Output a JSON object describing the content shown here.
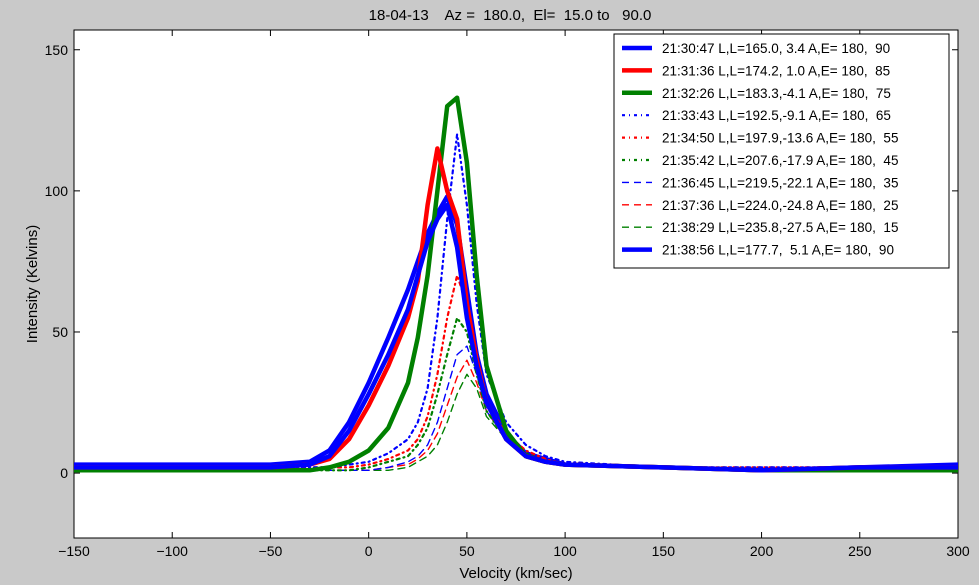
{
  "chart_data": {
    "type": "line",
    "title": "18-04-13    Az =  180.0,  El=  15.0 to   90.0",
    "xlabel": "Velocity (km/sec)",
    "ylabel": "Intensity (Kelvins)",
    "xlim": [
      -150,
      300
    ],
    "ylim": [
      -23,
      157
    ],
    "xticks": [
      "-150",
      "-100",
      "-50",
      "0",
      "50",
      "100",
      "150",
      "200",
      "250",
      "300"
    ],
    "yticks": [
      "0",
      "50",
      "100",
      "150"
    ],
    "grid": false,
    "legend_position": "top-right",
    "series": [
      {
        "name": "21:30:47 L,L=165.0, 3.4 A,E= 180,  90",
        "color": "#0000ff",
        "style": "solid-thick",
        "x": [
          -150,
          -100,
          -50,
          -30,
          -20,
          -10,
          0,
          10,
          20,
          25,
          30,
          35,
          40,
          45,
          50,
          55,
          60,
          70,
          80,
          90,
          100,
          150,
          200,
          250,
          300
        ],
        "y": [
          2,
          2,
          2,
          3,
          6,
          15,
          28,
          42,
          58,
          70,
          82,
          90,
          95,
          80,
          55,
          38,
          25,
          12,
          6,
          4,
          3,
          2,
          1,
          2,
          2
        ]
      },
      {
        "name": "21:31:36 L,L=174.2, 1.0 A,E= 180,  85",
        "color": "#ff0000",
        "style": "solid-thick",
        "x": [
          -150,
          -100,
          -50,
          -30,
          -20,
          -10,
          0,
          10,
          20,
          25,
          30,
          35,
          40,
          45,
          50,
          55,
          60,
          70,
          80,
          90,
          100,
          150,
          200,
          250,
          300
        ],
        "y": [
          2,
          2,
          2,
          3,
          5,
          12,
          24,
          38,
          55,
          68,
          95,
          115,
          100,
          90,
          60,
          40,
          25,
          12,
          6,
          4,
          3,
          2,
          1,
          2,
          2
        ]
      },
      {
        "name": "21:32:26 L,L=183.3,-4.1 A,E= 180,  75",
        "color": "#008000",
        "style": "solid-thick",
        "x": [
          -150,
          -100,
          -50,
          -30,
          -20,
          -10,
          0,
          10,
          20,
          25,
          30,
          35,
          40,
          45,
          50,
          55,
          60,
          70,
          80,
          90,
          100,
          150,
          200,
          250,
          300
        ],
        "y": [
          1,
          1,
          1,
          1,
          2,
          4,
          8,
          16,
          32,
          48,
          70,
          100,
          130,
          133,
          110,
          70,
          38,
          15,
          6,
          4,
          3,
          2,
          1,
          1,
          1
        ]
      },
      {
        "name": "21:33:43 L,L=192.5,-9.1 A,E= 180,  65",
        "color": "#0000ff",
        "style": "dashdot",
        "x": [
          -150,
          -100,
          -50,
          -30,
          -20,
          -10,
          0,
          10,
          20,
          25,
          30,
          35,
          40,
          45,
          50,
          55,
          60,
          70,
          80,
          90,
          100,
          150,
          200,
          250,
          300
        ],
        "y": [
          2,
          2,
          2,
          2,
          2,
          3,
          4,
          7,
          12,
          18,
          30,
          55,
          90,
          120,
          95,
          60,
          35,
          18,
          10,
          6,
          4,
          2,
          2,
          2,
          2
        ]
      },
      {
        "name": "21:34:50 L,L=197.9,-13.6 A,E= 180,  55",
        "color": "#ff0000",
        "style": "dashdot",
        "x": [
          -150,
          -100,
          -50,
          -30,
          -20,
          -10,
          0,
          10,
          20,
          25,
          30,
          35,
          40,
          45,
          50,
          55,
          60,
          70,
          80,
          90,
          100,
          150,
          200,
          250,
          300
        ],
        "y": [
          2,
          2,
          2,
          2,
          2,
          2,
          3,
          5,
          8,
          12,
          20,
          35,
          55,
          70,
          60,
          40,
          25,
          14,
          8,
          5,
          3,
          2,
          2,
          2,
          2
        ]
      },
      {
        "name": "21:35:42 L,L=207.6,-17.9 A,E= 180,  45",
        "color": "#008000",
        "style": "dashdot",
        "x": [
          -150,
          -100,
          -50,
          -30,
          -20,
          -10,
          0,
          10,
          20,
          25,
          30,
          35,
          40,
          45,
          50,
          55,
          60,
          70,
          80,
          90,
          100,
          150,
          200,
          250,
          300
        ],
        "y": [
          1,
          1,
          1,
          1,
          1,
          1,
          2,
          4,
          6,
          10,
          16,
          28,
          42,
          55,
          50,
          35,
          22,
          12,
          7,
          4,
          3,
          2,
          1,
          1,
          1
        ]
      },
      {
        "name": "21:36:45 L,L=219.5,-22.1 A,E= 180,  35",
        "color": "#0000ff",
        "style": "dashed",
        "x": [
          -150,
          -100,
          -50,
          -30,
          -20,
          -10,
          0,
          10,
          20,
          25,
          30,
          35,
          40,
          45,
          50,
          55,
          60,
          70,
          80,
          90,
          100,
          150,
          200,
          250,
          300
        ],
        "y": [
          1,
          1,
          1,
          1,
          1,
          1,
          1,
          2,
          4,
          6,
          10,
          18,
          30,
          42,
          45,
          35,
          22,
          12,
          7,
          4,
          3,
          2,
          1,
          1,
          1
        ]
      },
      {
        "name": "21:37:36 L,L=224.0,-24.8 A,E= 180,  25",
        "color": "#ff0000",
        "style": "dashed",
        "x": [
          -150,
          -100,
          -50,
          -30,
          -20,
          -10,
          0,
          10,
          20,
          25,
          30,
          35,
          40,
          45,
          50,
          55,
          60,
          70,
          80,
          90,
          100,
          150,
          200,
          250,
          300
        ],
        "y": [
          1,
          1,
          1,
          1,
          1,
          1,
          1,
          2,
          3,
          5,
          8,
          14,
          24,
          34,
          40,
          32,
          22,
          12,
          7,
          4,
          3,
          2,
          1,
          1,
          1
        ]
      },
      {
        "name": "21:38:29 L,L=235.8,-27.5 A,E= 180,  15",
        "color": "#008000",
        "style": "dashed",
        "x": [
          -150,
          -100,
          -50,
          -30,
          -20,
          -10,
          0,
          10,
          20,
          25,
          30,
          35,
          40,
          45,
          50,
          55,
          60,
          70,
          80,
          90,
          100,
          150,
          200,
          250,
          300
        ],
        "y": [
          1,
          1,
          1,
          1,
          1,
          1,
          1,
          1,
          2,
          4,
          6,
          10,
          18,
          28,
          35,
          30,
          20,
          12,
          7,
          4,
          3,
          2,
          1,
          1,
          1
        ]
      },
      {
        "name": "21:38:56 L,L=177.7,  5.1 A,E= 180,  90",
        "color": "#0000ff",
        "style": "solid-thick",
        "x": [
          -150,
          -100,
          -50,
          -30,
          -20,
          -10,
          0,
          10,
          20,
          25,
          30,
          35,
          40,
          45,
          50,
          55,
          60,
          70,
          80,
          90,
          100,
          150,
          200,
          250,
          300
        ],
        "y": [
          3,
          3,
          3,
          4,
          8,
          18,
          32,
          48,
          65,
          75,
          85,
          92,
          98,
          88,
          65,
          42,
          28,
          14,
          7,
          5,
          3,
          2,
          1,
          2,
          3
        ]
      }
    ]
  }
}
